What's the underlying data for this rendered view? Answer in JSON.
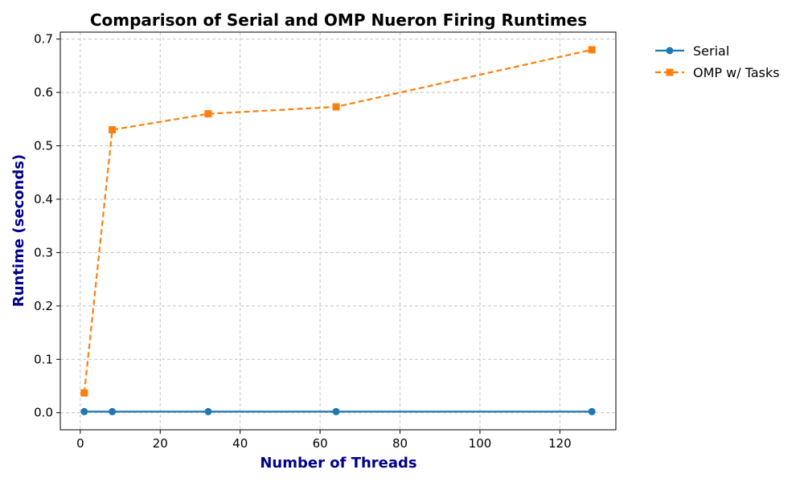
{
  "chart_data": {
    "type": "line",
    "title": "Comparison of Serial and OMP Nueron Firing Runtimes",
    "xlabel": "Number of Threads",
    "ylabel": "Runtime (seconds)",
    "axis_label_color": "#00008b",
    "xlim": [
      -5,
      134
    ],
    "ylim": [
      -0.032,
      0.713
    ],
    "x_ticks": [
      0,
      20,
      40,
      60,
      80,
      100,
      120
    ],
    "y_ticks": [
      0.0,
      0.1,
      0.2,
      0.3,
      0.4,
      0.5,
      0.6,
      0.7
    ],
    "x_tick_labels": [
      "0",
      "20",
      "40",
      "60",
      "80",
      "100",
      "120"
    ],
    "y_tick_labels": [
      "0.0",
      "0.1",
      "0.2",
      "0.3",
      "0.4",
      "0.5",
      "0.6",
      "0.7"
    ],
    "grid": true,
    "legend_position": "outside-top-right",
    "x": [
      1,
      8,
      32,
      64,
      128
    ],
    "series": [
      {
        "name": "Serial",
        "values": [
          0.002,
          0.002,
          0.002,
          0.002,
          0.002
        ],
        "color": "#1f77b4",
        "marker": "circle",
        "line_style": "solid"
      },
      {
        "name": "OMP w/ Tasks",
        "values": [
          0.037,
          0.53,
          0.56,
          0.573,
          0.68
        ],
        "color": "#ff7f0e",
        "marker": "square",
        "line_style": "dashed"
      }
    ]
  }
}
